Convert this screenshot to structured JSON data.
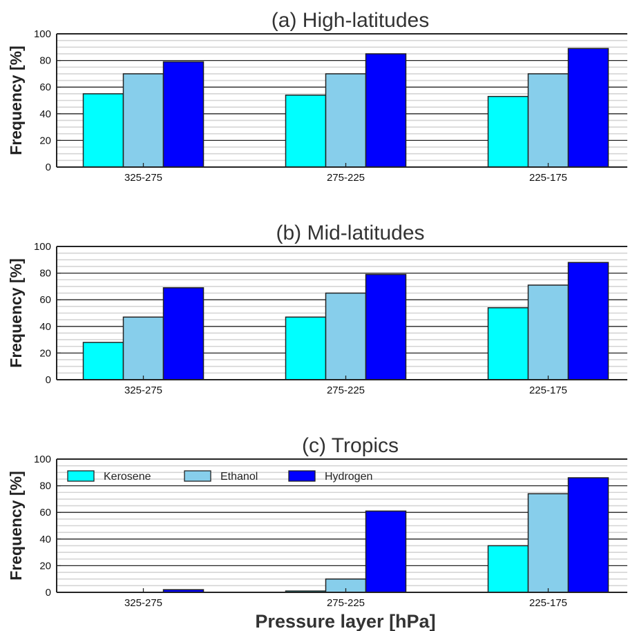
{
  "chart_data": [
    {
      "type": "bar",
      "title": "(a) High-latitudes",
      "ylabel": "Frequency [%]",
      "xlabel": "",
      "ylim": [
        0,
        100
      ],
      "yticks": [
        "0",
        "20",
        "40",
        "60",
        "80",
        "100"
      ],
      "categories": [
        "325-275",
        "275-225",
        "225-175"
      ],
      "grid": true,
      "series": [
        {
          "name": "Kerosene",
          "color": "#00ffff",
          "values": [
            55,
            54,
            53
          ]
        },
        {
          "name": "Ethanol",
          "color": "#87ceeb",
          "values": [
            70,
            70,
            70
          ]
        },
        {
          "name": "Hydrogen",
          "color": "#0000ff",
          "values": [
            79,
            85,
            89
          ]
        }
      ]
    },
    {
      "type": "bar",
      "title": "(b) Mid-latitudes",
      "ylabel": "Frequency [%]",
      "xlabel": "",
      "ylim": [
        0,
        100
      ],
      "yticks": [
        "0",
        "20",
        "40",
        "60",
        "80",
        "100"
      ],
      "categories": [
        "325-275",
        "275-225",
        "225-175"
      ],
      "grid": true,
      "series": [
        {
          "name": "Kerosene",
          "color": "#00ffff",
          "values": [
            28,
            47,
            54
          ]
        },
        {
          "name": "Ethanol",
          "color": "#87ceeb",
          "values": [
            47,
            65,
            71
          ]
        },
        {
          "name": "Hydrogen",
          "color": "#0000ff",
          "values": [
            69,
            79,
            88
          ]
        }
      ]
    },
    {
      "type": "bar",
      "title": "(c) Tropics",
      "ylabel": "Frequency [%]",
      "xlabel": "Pressure layer [hPa]",
      "ylim": [
        0,
        100
      ],
      "yticks": [
        "0",
        "20",
        "40",
        "60",
        "80",
        "100"
      ],
      "categories": [
        "325-275",
        "275-225",
        "225-175"
      ],
      "grid": true,
      "legend": {
        "position": "top-left",
        "orientation": "horizontal"
      },
      "series": [
        {
          "name": "Kerosene",
          "color": "#00ffff",
          "values": [
            0,
            1,
            35
          ]
        },
        {
          "name": "Ethanol",
          "color": "#87ceeb",
          "values": [
            0,
            10,
            74
          ]
        },
        {
          "name": "Hydrogen",
          "color": "#0000ff",
          "values": [
            2,
            61,
            86
          ]
        }
      ]
    }
  ]
}
